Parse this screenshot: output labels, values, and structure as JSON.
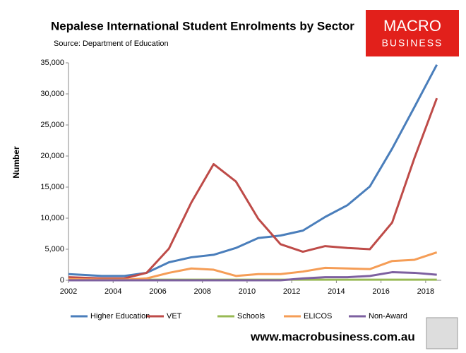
{
  "chart_data": {
    "type": "line",
    "title": "Nepalese International Student Enrolments by Sector",
    "subtitle": "Source: Department of Education",
    "logo": [
      "MACRO",
      "BUSINESS"
    ],
    "footer": "www.macrobusiness.com.au",
    "y_label": "Number",
    "x": [
      2002,
      2003.5,
      2004.5,
      2005.5,
      2006.5,
      2007.5,
      2008.5,
      2009.5,
      2010.5,
      2011.5,
      2012.5,
      2013.5,
      2014.5,
      2015.5,
      2016.5,
      2017.5,
      2018.5
    ],
    "series": [
      {
        "name": "Higher Education",
        "color": "#4a7ebb",
        "values": [
          1000,
          700,
          700,
          1200,
          2900,
          3700,
          4100,
          5200,
          6800,
          7200,
          8000,
          10200,
          12100,
          15100,
          21200,
          27900,
          34700
        ]
      },
      {
        "name": "VET",
        "color": "#be4b48",
        "values": [
          500,
          300,
          300,
          1200,
          5100,
          12500,
          18700,
          15900,
          9900,
          5800,
          4600,
          5500,
          5200,
          5000,
          9300,
          19700,
          29300
        ]
      },
      {
        "name": "Schools",
        "color": "#98b954",
        "values": [
          100,
          100,
          100,
          100,
          100,
          100,
          100,
          100,
          100,
          100,
          100,
          100,
          100,
          100,
          100,
          100,
          100
        ]
      },
      {
        "name": "ELICOS",
        "color": "#f59d56",
        "values": [
          200,
          100,
          100,
          300,
          1200,
          1900,
          1700,
          700,
          1000,
          1000,
          1400,
          2000,
          1900,
          1800,
          3100,
          3300,
          4500
        ]
      },
      {
        "name": "Non-Award",
        "color": "#7d60a0",
        "values": [
          0,
          0,
          0,
          0,
          0,
          0,
          0,
          0,
          0,
          0,
          300,
          500,
          500,
          700,
          1300,
          1200,
          900
        ]
      }
    ],
    "xlim": [
      2002,
      2018.7
    ],
    "xticks": [
      2002,
      2004,
      2006,
      2008,
      2010,
      2012,
      2014,
      2016,
      2018
    ],
    "ylim": [
      0,
      35000
    ],
    "yticks": [
      0,
      {
        "value": 5000,
        "label": "5,000"
      },
      {
        "value": 10000,
        "label": "10,000"
      },
      {
        "value": 15000,
        "label": "15,000"
      },
      {
        "value": 20000,
        "label": "20,000"
      },
      {
        "value": 25000,
        "label": "25,000"
      },
      {
        "value": 30000,
        "label": "30,000"
      },
      {
        "value": 35000,
        "label": "35,000"
      }
    ]
  }
}
